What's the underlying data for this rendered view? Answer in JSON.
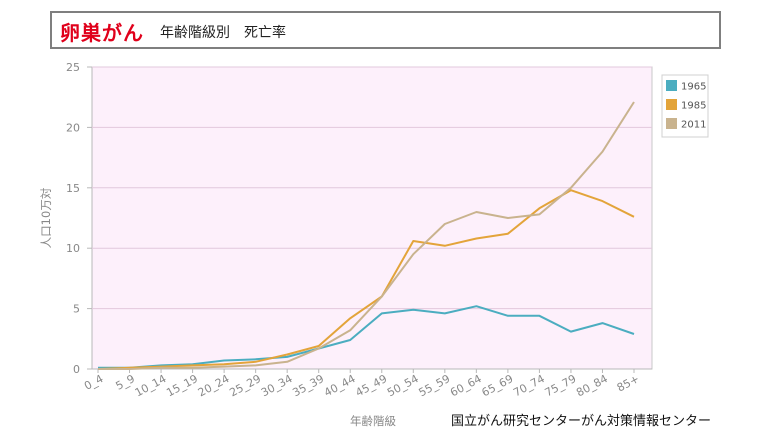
{
  "title": {
    "main": "卵巣がん",
    "sub": "年齢階級別　死亡率"
  },
  "source": "国立がん研究センターがん対策情報センター",
  "chart_data": {
    "type": "line",
    "xlabel": "年齢階級",
    "ylabel": "人口10万対",
    "ylim": [
      0,
      25
    ],
    "yticks": [
      0,
      5,
      10,
      15,
      20,
      25
    ],
    "grid": true,
    "legend_position": "right",
    "categories": [
      "0_4",
      "5_9",
      "10_14",
      "15_19",
      "20_24",
      "25_29",
      "30_34",
      "35_39",
      "40_44",
      "45_49",
      "50_54",
      "55_59",
      "60_64",
      "65_69",
      "70_74",
      "75_79",
      "80_84",
      "85+"
    ],
    "series": [
      {
        "name": "1965",
        "color": "#4badc0",
        "values": [
          0.1,
          0.1,
          0.3,
          0.4,
          0.7,
          0.8,
          1.0,
          1.7,
          2.4,
          4.6,
          4.9,
          4.6,
          5.2,
          4.4,
          4.4,
          3.1,
          3.8,
          2.9
        ]
      },
      {
        "name": "1985",
        "color": "#e3a43a",
        "values": [
          0.0,
          0.1,
          0.2,
          0.3,
          0.4,
          0.6,
          1.2,
          1.9,
          4.2,
          6.0,
          10.6,
          10.2,
          10.8,
          11.2,
          13.3,
          14.8,
          13.9,
          12.6
        ]
      },
      {
        "name": "2011",
        "color": "#c9b38e",
        "values": [
          0.0,
          0.0,
          0.1,
          0.1,
          0.2,
          0.3,
          0.6,
          1.7,
          3.2,
          6.0,
          9.5,
          12.0,
          13.0,
          12.5,
          12.8,
          15.0,
          18.0,
          22.1
        ]
      }
    ]
  }
}
